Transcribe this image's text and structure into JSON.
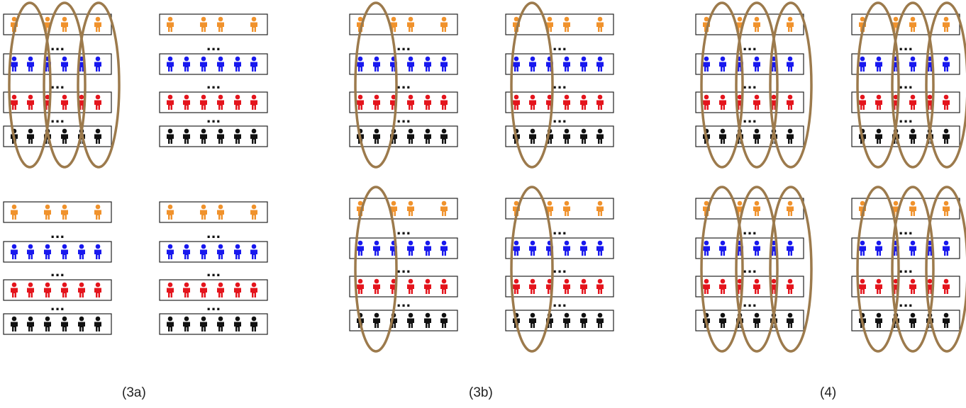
{
  "captions": [
    "(3a)",
    "(3b)",
    "(4)"
  ],
  "colors": {
    "row_colors": [
      "#f0922c",
      "#1818ee",
      "#e4141c",
      "#111111"
    ],
    "box_stroke": "#222222",
    "ellipse_stroke": "#9c7a4c",
    "dots": "#111111"
  },
  "row_patterns": {
    "orange": [
      1,
      0,
      1,
      1,
      0,
      1
    ],
    "full": [
      1,
      1,
      1,
      1,
      1,
      1
    ]
  },
  "dots_text": "...",
  "icon_name": "person-icon",
  "panels": [
    {
      "id": "3a-top-left",
      "ellipses": "three"
    },
    {
      "id": "3a-top-right",
      "ellipses": "none"
    },
    {
      "id": "3a-bottom-left",
      "ellipses": "none"
    },
    {
      "id": "3a-bottom-right",
      "ellipses": "none"
    },
    {
      "id": "3b-top-left",
      "ellipses": "one"
    },
    {
      "id": "3b-top-right",
      "ellipses": "one"
    },
    {
      "id": "3b-bottom-left",
      "ellipses": "one"
    },
    {
      "id": "3b-bottom-right",
      "ellipses": "one"
    },
    {
      "id": "4-top-left",
      "ellipses": "three"
    },
    {
      "id": "4-top-right",
      "ellipses": "three"
    },
    {
      "id": "4-bottom-left",
      "ellipses": "three"
    },
    {
      "id": "4-bottom-right",
      "ellipses": "three"
    }
  ]
}
